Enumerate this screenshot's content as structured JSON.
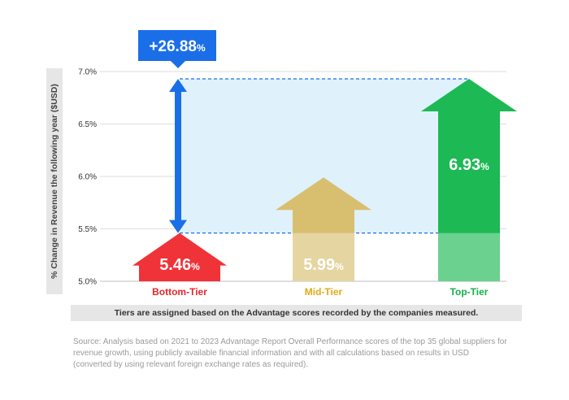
{
  "chart_data": {
    "type": "bar",
    "title": "",
    "xlabel": "",
    "ylabel": "% Change in Revenue the following year ($USD)",
    "ylim": [
      5.0,
      7.0
    ],
    "yticks": [
      "5.0%",
      "5.5%",
      "6.0%",
      "6.5%",
      "7.0%"
    ],
    "ytick_values": [
      5.0,
      5.5,
      6.0,
      6.5,
      7.0
    ],
    "categories": [
      "Bottom-Tier",
      "Mid-Tier",
      "Top-Tier"
    ],
    "values": [
      5.46,
      5.99,
      6.93
    ],
    "value_labels": [
      {
        "num": "5.46",
        "unit": "%"
      },
      {
        "num": "5.99",
        "unit": "%"
      },
      {
        "num": "6.93",
        "unit": "%"
      }
    ],
    "colors": [
      "#f03338",
      "#d8bf6f",
      "#1db954"
    ],
    "label_colors": [
      "#e8242b",
      "#e2a917",
      "#12b04a"
    ],
    "difference": {
      "num": "+26.88",
      "unit": "%",
      "from": 5.46,
      "to": 6.93,
      "color": "#1a6fe8"
    },
    "grid": true,
    "note": "Tiers are assigned based on the Advantage scores recorded by the companies measured.",
    "source": "Source: Analysis based on 2021 to 2023 Advantage Report Overall Performance scores of the top 35 global suppliers for revenue growth, using publicly available financial information and with all calculations based on results in USD (converted by using relevant foreign exchange rates as required)."
  }
}
